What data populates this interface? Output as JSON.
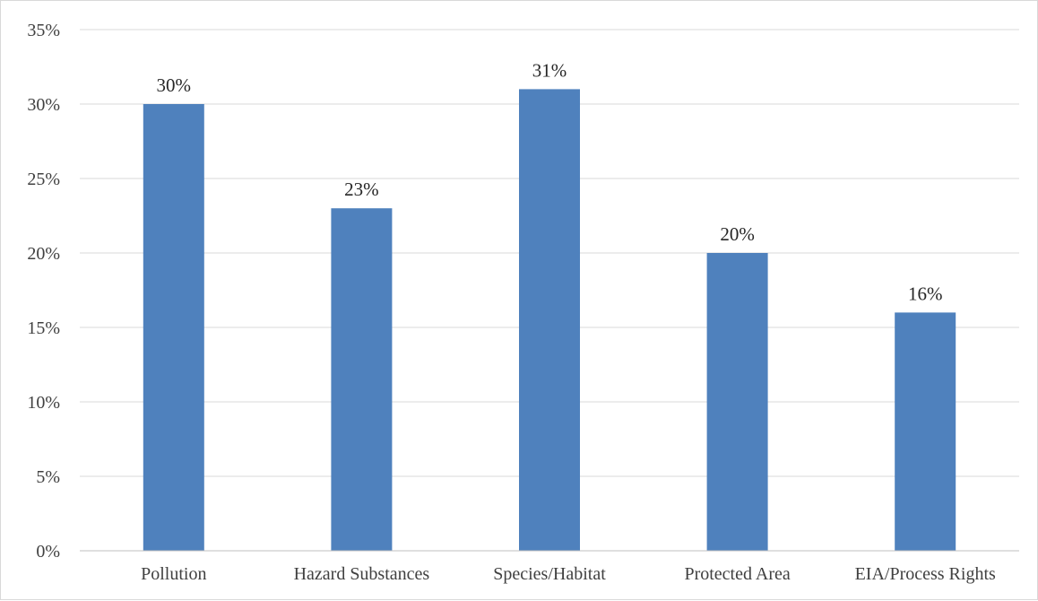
{
  "chart_data": {
    "type": "bar",
    "categories": [
      "Pollution",
      "Hazard Substances",
      "Species/Habitat",
      "Protected Area",
      "EIA/Process Rights"
    ],
    "values": [
      30,
      23,
      31,
      20,
      16
    ],
    "data_labels": [
      "30%",
      "23%",
      "31%",
      "20%",
      "16%"
    ],
    "title": "",
    "xlabel": "",
    "ylabel": "",
    "ylim": [
      0,
      35
    ],
    "yticks": [
      0,
      5,
      10,
      15,
      20,
      25,
      30,
      35
    ],
    "ytick_labels": [
      "0%",
      "5%",
      "10%",
      "15%",
      "20%",
      "25%",
      "30%",
      "35%"
    ],
    "grid": true,
    "legend": "none",
    "bar_color": "#4f81bd"
  }
}
